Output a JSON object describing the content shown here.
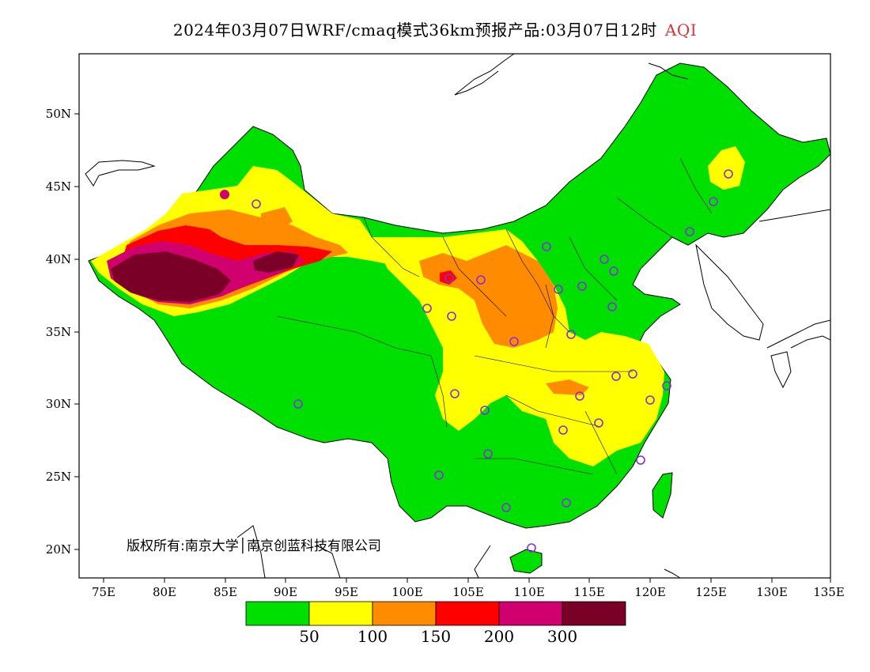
{
  "title": {
    "main": "2024年03月07日WRF/cmaq模式36km预报产品:03月07日12时",
    "pollutant": "AQI"
  },
  "copyright": "版权所有:南京大学│南京创蓝科技有限公司",
  "axes": {
    "lat_ticks": [
      "50N",
      "45N",
      "40N",
      "35N",
      "30N",
      "25N",
      "20N"
    ],
    "lon_ticks": [
      "75E",
      "80E",
      "85E",
      "90E",
      "95E",
      "100E",
      "105E",
      "110E",
      "115E",
      "120E",
      "125E",
      "130E",
      "135E"
    ]
  },
  "legend": {
    "colors": [
      "#00e000",
      "#ffff00",
      "#ff8c00",
      "#ff0000",
      "#d0006e",
      "#7a0028"
    ],
    "labels": [
      "50",
      "100",
      "150",
      "200",
      "300"
    ]
  },
  "colors": {
    "aqi_good": "#00e000",
    "aqi_moderate": "#ffff00",
    "aqi_usg": "#ff8c00",
    "aqi_unhealthy": "#ff0000",
    "aqi_very_unhealthy": "#d0006e",
    "aqi_hazardous": "#7a0028",
    "station_marker": "#8a2be2",
    "title_accent": "#e0303a"
  }
}
